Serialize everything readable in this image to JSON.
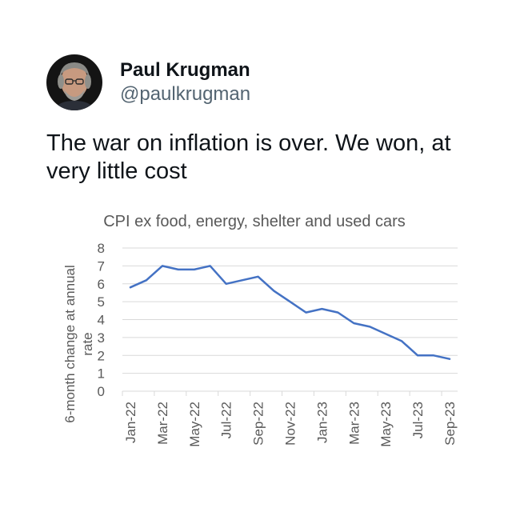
{
  "tweet": {
    "display_name": "Paul Krugman",
    "handle": "@paulkrugman",
    "text": "The war on inflation is over. We won, at very little cost"
  },
  "colors": {
    "text_primary": "#0f1419",
    "text_secondary": "#536471",
    "line": "#4472c4",
    "grid": "#d9d9d9",
    "axis_text": "#595959"
  },
  "chart_data": {
    "type": "line",
    "title": "CPI ex food, energy, shelter and used cars",
    "xlabel": "",
    "ylabel": "6-month change at annual rate",
    "ylim": [
      0,
      8
    ],
    "yticks": [
      "0",
      "1",
      "2",
      "3",
      "4",
      "5",
      "6",
      "7",
      "8"
    ],
    "grid": true,
    "legend": "none",
    "tick_labels": [
      "Jan-22",
      "Mar-22",
      "May-22",
      "Jul-22",
      "Sep-22",
      "Nov-22",
      "Jan-23",
      "Mar-23",
      "May-23",
      "Jul-23",
      "Sep-23"
    ],
    "x": [
      "Jan-22",
      "Feb-22",
      "Mar-22",
      "Apr-22",
      "May-22",
      "Jun-22",
      "Jul-22",
      "Aug-22",
      "Sep-22",
      "Oct-22",
      "Nov-22",
      "Dec-22",
      "Jan-23",
      "Feb-23",
      "Mar-23",
      "Apr-23",
      "May-23",
      "Jun-23",
      "Jul-23",
      "Aug-23",
      "Sep-23"
    ],
    "series": [
      {
        "values": [
          5.8,
          6.2,
          7.0,
          6.8,
          6.8,
          7.0,
          6.0,
          6.2,
          6.4,
          5.6,
          5.0,
          4.4,
          4.6,
          4.4,
          3.8,
          3.6,
          3.2,
          2.8,
          2.0,
          2.0,
          1.8
        ]
      }
    ]
  }
}
